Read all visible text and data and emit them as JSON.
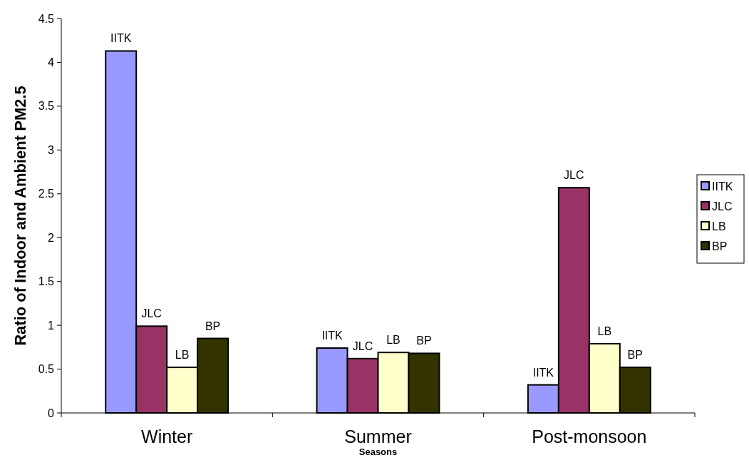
{
  "chart_data": {
    "type": "bar",
    "xlabel": "Seasons",
    "ylabel": "Ratio of Indoor and Ambient PM2.5",
    "categories": [
      "Winter",
      "Summer",
      "Post-monsoon"
    ],
    "series": [
      {
        "name": "IITK",
        "color": "#9999ff",
        "values": [
          4.13,
          0.74,
          0.32
        ],
        "value_labels": [
          "IITK",
          "IITK",
          "IITK"
        ]
      },
      {
        "name": "JLC",
        "color": "#993366",
        "values": [
          0.99,
          0.62,
          2.57
        ],
        "value_labels": [
          "JLC",
          "JLC",
          "JLC"
        ]
      },
      {
        "name": "LB",
        "color": "#ffffcc",
        "values": [
          0.52,
          0.69,
          0.79
        ],
        "value_labels": [
          "LB",
          "LB",
          "LB"
        ]
      },
      {
        "name": "BP",
        "color": "#333300",
        "values": [
          0.85,
          0.68,
          0.52
        ],
        "value_labels": [
          "BP",
          "BP",
          "BP"
        ]
      }
    ],
    "ylim": [
      0,
      4.5
    ],
    "yticks": [
      0,
      0.5,
      1,
      1.5,
      2,
      2.5,
      3,
      3.5,
      4,
      4.5
    ],
    "grid": false,
    "legend": "right"
  }
}
